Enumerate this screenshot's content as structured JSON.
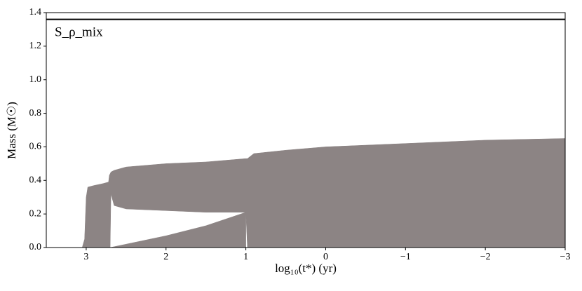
{
  "chart_data": {
    "type": "area",
    "annotation": "S_ρ_mix",
    "xlabel": "log₁₀(t*) (yr)",
    "ylabel": "Mass (M☉)",
    "xlim": [
      3.5,
      -3
    ],
    "ylim": [
      0,
      1.4
    ],
    "xticks": [
      3,
      2,
      1,
      0,
      {
        "value": -1,
        "label": "−1"
      },
      {
        "value": -2,
        "label": "−2"
      },
      {
        "value": -3,
        "label": "−3"
      }
    ],
    "yticks": [
      {
        "value": 0,
        "label": "0.0"
      },
      0.2,
      0.4,
      0.6,
      0.8,
      {
        "value": 1,
        "label": "1.0"
      },
      1.2,
      1.4
    ],
    "areas": [
      {
        "color": "#8c8484",
        "x": [
          3.5,
          3.05,
          3.02,
          3.0,
          2.98,
          2.9,
          2.8,
          2.72,
          2.71,
          2.7,
          2.69,
          2.65,
          2.5,
          2.0,
          1.5,
          1.0,
          0.98,
          0.9,
          0.5,
          0,
          -1,
          -2,
          -3
        ],
        "upper": [
          0,
          0,
          0.05,
          0.3,
          0.36,
          0.37,
          0.38,
          0.39,
          0.43,
          0.44,
          0.45,
          0.46,
          0.48,
          0.5,
          0.51,
          0.53,
          0.53,
          0.56,
          0.58,
          0.6,
          0.62,
          0.64,
          0.65
        ],
        "lower": [
          0,
          0,
          0,
          0,
          0,
          0,
          0,
          0,
          0,
          0,
          0.32,
          0.25,
          0.23,
          0.22,
          0.21,
          0.21,
          0,
          0,
          0,
          0,
          0,
          0,
          0
        ]
      },
      {
        "color": "#8c8484",
        "x": [
          2.7,
          2.5,
          2.0,
          1.5,
          1.0
        ],
        "upper": [
          0,
          0.02,
          0.07,
          0.13,
          0.21
        ],
        "lower": [
          0,
          0,
          0,
          0,
          0
        ]
      }
    ],
    "lines": [
      {
        "color": "#000000",
        "x": [
          3.5,
          -3
        ],
        "values": [
          1.36,
          1.36
        ]
      }
    ]
  }
}
